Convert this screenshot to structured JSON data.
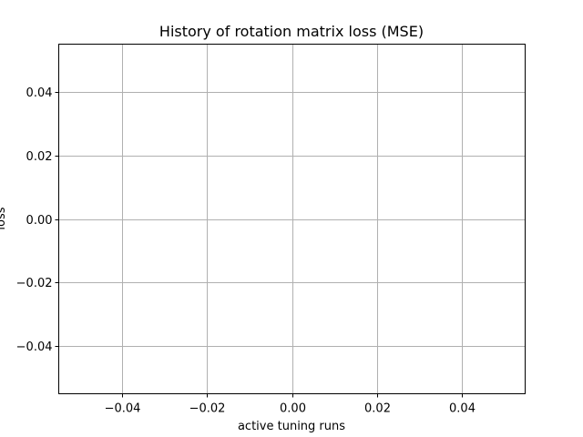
{
  "chart_data": {
    "type": "line",
    "title": "History of rotation matrix loss (MSE)",
    "xlabel": "active tuning runs",
    "ylabel": "loss",
    "xlim": [
      -0.055,
      0.055
    ],
    "ylim": [
      -0.055,
      0.055
    ],
    "x_ticks": [
      -0.04,
      -0.02,
      0.0,
      0.02,
      0.04
    ],
    "x_tick_labels": [
      "−0.04",
      "−0.02",
      "0.00",
      "0.02",
      "0.04"
    ],
    "y_ticks": [
      -0.04,
      -0.02,
      0.0,
      0.02,
      0.04
    ],
    "y_tick_labels": [
      "−0.04",
      "−0.02",
      "0.00",
      "0.02",
      "0.04"
    ],
    "grid": true,
    "series": [],
    "colors": {
      "grid": "#b0b0b0",
      "axes": "#000000",
      "background": "#ffffff"
    }
  }
}
